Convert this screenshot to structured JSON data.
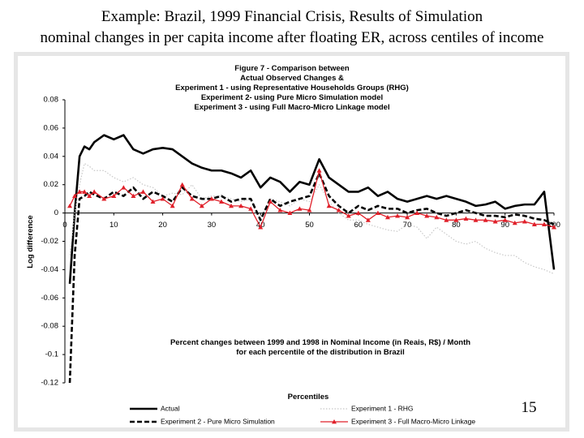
{
  "header": {
    "title": "Example: Brazil, 1999 Financial Crisis, Results of Simulation",
    "subtitle": "nominal changes in per capita income after floating ER, across centiles of income"
  },
  "slide_number": "15",
  "chart_data": {
    "type": "line",
    "title": [
      "Figure 7 - Comparison between",
      "Actual Observed Changes &",
      "Experiment 1 - using Representative Households Groups (RHG)",
      "Experiment 2- using Pure Micro Simulation model",
      "Experiment 3 - using Full Macro-Micro Linkage model"
    ],
    "annotations": [
      "Percent changes between 1999 and 1998 in Nominal Income (in Reais, R$) / Month",
      "for each percentile of the distribution in Brazil"
    ],
    "x_label": "Percentiles",
    "y_label": "Log difference",
    "xlim": [
      0,
      100
    ],
    "xticks": [
      0,
      10,
      20,
      30,
      40,
      50,
      60,
      70,
      80,
      90,
      100
    ],
    "ylim": [
      -0.12,
      0.08
    ],
    "yticks": [
      -0.12,
      -0.1,
      -0.08,
      -0.06,
      -0.04,
      -0.02,
      0,
      0.02,
      0.04,
      0.06,
      0.08
    ],
    "legend": "bottom",
    "x": [
      1,
      2,
      3,
      4,
      5,
      6,
      8,
      10,
      12,
      14,
      16,
      18,
      20,
      22,
      24,
      26,
      28,
      30,
      32,
      34,
      36,
      38,
      40,
      42,
      44,
      46,
      48,
      50,
      52,
      54,
      56,
      58,
      60,
      62,
      64,
      66,
      68,
      70,
      72,
      74,
      76,
      78,
      80,
      82,
      84,
      86,
      88,
      90,
      92,
      94,
      96,
      98,
      100
    ],
    "series": [
      {
        "name": "Actual",
        "color": "#000000",
        "style": "solid",
        "values": [
          -0.05,
          0.0,
          0.04,
          0.047,
          0.045,
          0.05,
          0.055,
          0.052,
          0.055,
          0.045,
          0.042,
          0.045,
          0.046,
          0.045,
          0.04,
          0.035,
          0.032,
          0.03,
          0.03,
          0.028,
          0.025,
          0.03,
          0.018,
          0.025,
          0.022,
          0.015,
          0.022,
          0.02,
          0.038,
          0.025,
          0.02,
          0.015,
          0.015,
          0.018,
          0.012,
          0.015,
          0.01,
          0.008,
          0.01,
          0.012,
          0.01,
          0.012,
          0.01,
          0.008,
          0.005,
          0.006,
          0.008,
          0.003,
          0.005,
          0.006,
          0.006,
          0.015,
          -0.04
        ]
      },
      {
        "name": "Experiment 1 - RHG",
        "color": "#c8c8c8",
        "style": "dotted",
        "values": [
          -0.03,
          0.0,
          0.02,
          0.035,
          0.033,
          0.03,
          0.03,
          0.025,
          0.022,
          0.025,
          0.02,
          0.018,
          0.012,
          0.014,
          0.013,
          0.02,
          0.01,
          0.012,
          0.012,
          0.01,
          0.008,
          0.01,
          -0.005,
          0.01,
          0.008,
          0.005,
          0.01,
          0.008,
          0.02,
          0.008,
          0.0,
          -0.005,
          -0.005,
          -0.008,
          -0.01,
          -0.012,
          -0.013,
          -0.008,
          -0.01,
          -0.018,
          -0.01,
          -0.015,
          -0.02,
          -0.022,
          -0.02,
          -0.025,
          -0.028,
          -0.03,
          -0.03,
          -0.035,
          -0.038,
          -0.04,
          -0.043
        ]
      },
      {
        "name": "Experiment 2 - Pure Micro Simulation",
        "color": "#000000",
        "style": "dashed",
        "values": [
          -0.12,
          -0.03,
          0.01,
          0.012,
          0.015,
          0.013,
          0.01,
          0.015,
          0.012,
          0.018,
          0.01,
          0.015,
          0.012,
          0.008,
          0.018,
          0.012,
          0.01,
          0.01,
          0.012,
          0.008,
          0.01,
          0.01,
          -0.005,
          0.01,
          0.005,
          0.008,
          0.01,
          0.012,
          0.028,
          0.012,
          0.005,
          0.0,
          0.005,
          0.002,
          0.005,
          0.003,
          0.003,
          0.0,
          0.002,
          0.003,
          0.0,
          -0.002,
          0.0,
          0.002,
          0.0,
          -0.002,
          -0.002,
          -0.003,
          -0.001,
          -0.002,
          -0.004,
          -0.005,
          -0.008
        ]
      },
      {
        "name": "Experiment 3 - Full Macro-Micro Linkage",
        "color": "#e0202a",
        "style": "triangle",
        "values": [
          0.005,
          0.012,
          0.015,
          0.015,
          0.012,
          0.015,
          0.01,
          0.012,
          0.018,
          0.012,
          0.015,
          0.008,
          0.01,
          0.005,
          0.02,
          0.01,
          0.005,
          0.01,
          0.008,
          0.005,
          0.005,
          0.003,
          -0.01,
          0.008,
          0.002,
          0.0,
          0.003,
          0.002,
          0.03,
          0.005,
          0.002,
          -0.002,
          0.0,
          -0.005,
          0.0,
          -0.003,
          -0.002,
          -0.003,
          0.0,
          -0.002,
          -0.003,
          -0.005,
          -0.005,
          -0.004,
          -0.005,
          -0.005,
          -0.006,
          -0.005,
          -0.007,
          -0.006,
          -0.008,
          -0.008,
          -0.01
        ]
      }
    ]
  }
}
